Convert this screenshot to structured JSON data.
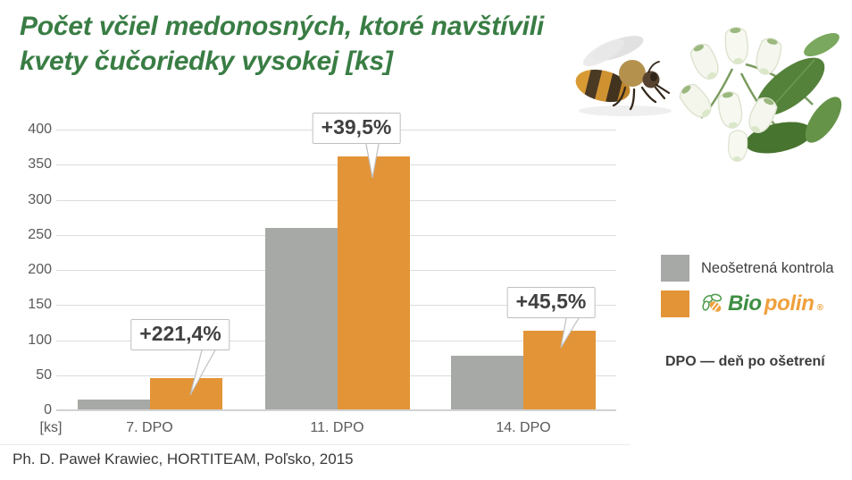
{
  "slide": {
    "title_line1": "Počet včiel medonosných, ktoré navštívili",
    "title_line2": "kvety čučoriedky vysokej [ks]",
    "source": "Ph. D. Paweł Krawiec, HORTITEAM, Poľsko, 2015"
  },
  "chart_data": {
    "type": "bar",
    "title": "Počet včiel medonosných, ktoré navštívili kvety čučoriedky vysokej [ks]",
    "categories": [
      "7. DPO",
      "11. DPO",
      "14. DPO"
    ],
    "series": [
      {
        "name": "Neošetrená kontrola",
        "color": "#a6a9a5",
        "values": [
          14,
          258,
          77
        ]
      },
      {
        "name": "Biopolin",
        "color": "#e39437",
        "values": [
          45,
          360,
          112
        ]
      }
    ],
    "annotations": [
      {
        "label": "+221,4%",
        "category": "7. DPO"
      },
      {
        "label": "+39,5%",
        "category": "11. DPO"
      },
      {
        "label": "+45,5%",
        "category": "14. DPO"
      }
    ],
    "y_ticks": [
      0,
      50,
      100,
      150,
      200,
      250,
      300,
      350,
      400
    ],
    "ylim": [
      0,
      400
    ],
    "y_unit": "[ks]",
    "grid": true,
    "legend_position": "right"
  },
  "legend": {
    "control_label": "Neošetrená kontrola",
    "logo_bio": "Bio",
    "logo_polin": "polin",
    "logo_reg": "®",
    "note": "DPO — deň po ošetrení"
  },
  "colors": {
    "title_green": "#397d44",
    "bar_gray": "#a6a9a5",
    "bar_orange": "#e39437",
    "axis_text": "#595959",
    "callout_text": "#404040",
    "callout_border": "#bfbfbf",
    "logo_green": "#3e8f44",
    "logo_orange": "#efa03c",
    "note_text": "#3c3c3c"
  }
}
